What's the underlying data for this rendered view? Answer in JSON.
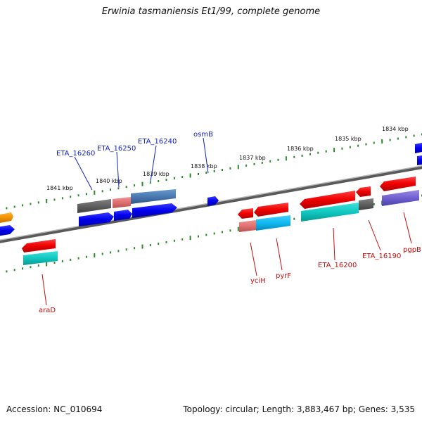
{
  "title": "Erwinia tasmaniensis Et1/99, complete genome",
  "footer": {
    "accession": "Accession: NC_010694",
    "topology": "Topology: circular; Length: 3,883,467 bp; Genes: 3,535"
  },
  "scale_labels": [
    "1841 kbp",
    "1840 kbp",
    "1839 kbp",
    "1838 kbp",
    "1837 kbp",
    "1836 kbp",
    "1835 kbp",
    "1834 kbp"
  ],
  "gene_labels_top": [
    "ETA_16260",
    "ETA_16250",
    "ETA_16240",
    "osmB"
  ],
  "gene_labels_bottom": [
    "araD",
    "yciH",
    "pyrF",
    "ETA_16200",
    "ETA_16190",
    "pgpB"
  ],
  "colors": {
    "forward_label": "#1020c8",
    "reverse_label": "#c81010",
    "tick": "#2a8a2a",
    "backbone": "#7a7a7a"
  }
}
